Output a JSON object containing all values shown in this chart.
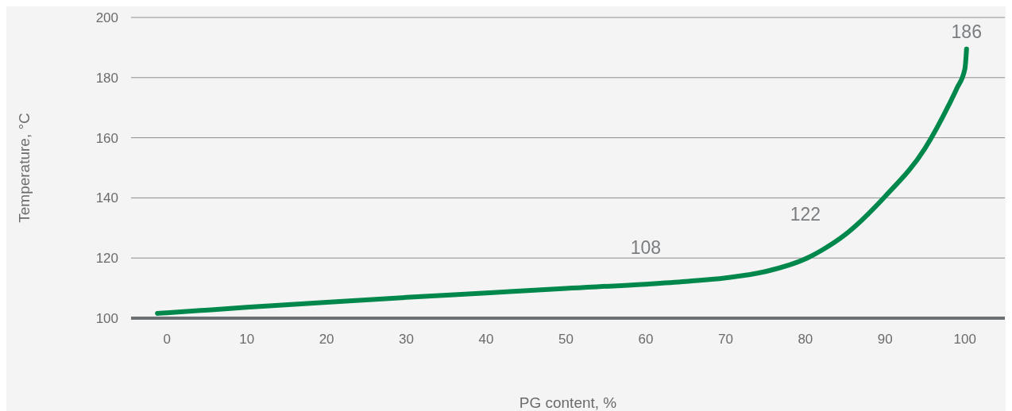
{
  "chart_data": {
    "type": "line",
    "xlabel": "PG content, %",
    "ylabel": "Temperature, °C",
    "x": [
      -1.2,
      0,
      10,
      20,
      30,
      40,
      50,
      60,
      65,
      70,
      75,
      80,
      82,
      85,
      90,
      95,
      98,
      99,
      100,
      100.2
    ],
    "series": [
      {
        "color": "#00874b",
        "values": [
          101.6,
          101.8,
          103.6,
          105.3,
          106.9,
          108.4,
          109.9,
          111.3,
          112.2,
          113.4,
          115.5,
          119.7,
          122.5,
          127.8,
          140.5,
          156.5,
          171,
          176.5,
          183,
          189.5
        ]
      }
    ],
    "annotations": [
      {
        "text": "108",
        "x": 60,
        "y": 111.3
      },
      {
        "text": "122",
        "x": 80,
        "y": 119.7
      },
      {
        "text": "186",
        "x": 100.2,
        "y": 189.5
      }
    ],
    "xlim": [
      -4.5,
      105
    ],
    "ylim": [
      100,
      200
    ],
    "xticks": [
      0,
      10,
      20,
      30,
      40,
      50,
      60,
      70,
      80,
      90,
      100
    ],
    "yticks": [
      100,
      120,
      140,
      160,
      180,
      200
    ],
    "grid": "y",
    "legend": false,
    "marker": "none",
    "line_style": "solid"
  }
}
